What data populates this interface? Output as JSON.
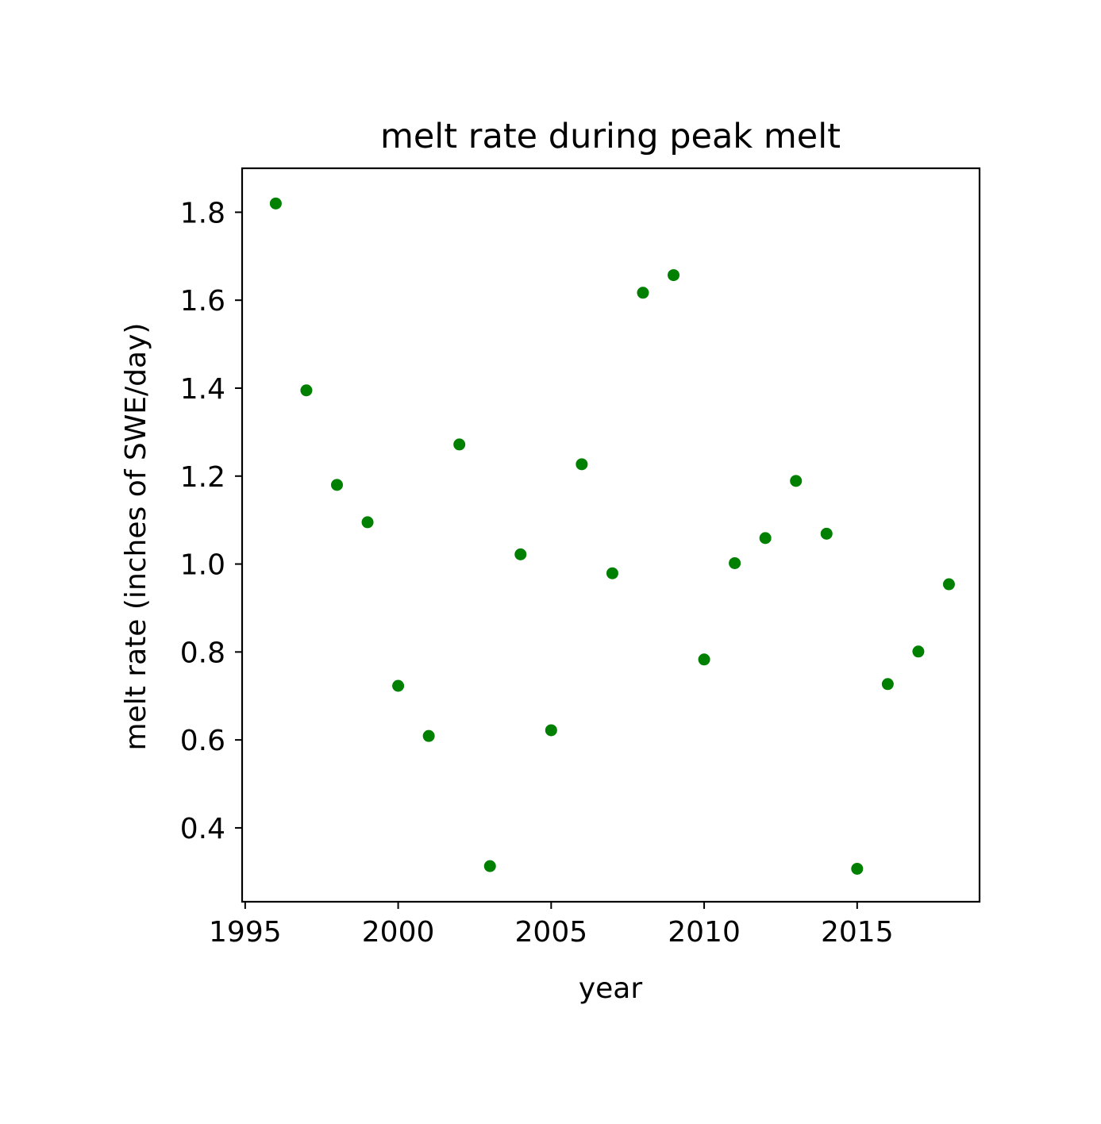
{
  "chart_data": {
    "type": "scatter",
    "title": "melt rate during peak melt",
    "xlabel": "year",
    "ylabel": "melt rate (inches of SWE/day)",
    "xlim": [
      1994.9,
      2019.0
    ],
    "ylim": [
      0.232,
      1.9
    ],
    "xticks": [
      1995,
      2000,
      2005,
      2010,
      2015
    ],
    "yticks": [
      0.4,
      0.6,
      0.8,
      1.0,
      1.2,
      1.4,
      1.6,
      1.8
    ],
    "xtick_labels": [
      "1995",
      "2000",
      "2005",
      "2010",
      "2015"
    ],
    "ytick_labels": [
      "0.4",
      "0.6",
      "0.8",
      "1.0",
      "1.2",
      "1.4",
      "1.6",
      "1.8"
    ],
    "grid": false,
    "marker_color": "#008000",
    "x": [
      1996,
      1997,
      1998,
      1999,
      2000,
      2001,
      2002,
      2003,
      2004,
      2005,
      2006,
      2007,
      2008,
      2009,
      2010,
      2011,
      2012,
      2013,
      2014,
      2015,
      2016,
      2017,
      2018
    ],
    "y": [
      1.82,
      1.395,
      1.18,
      1.095,
      0.723,
      0.609,
      1.272,
      0.313,
      1.022,
      0.622,
      1.227,
      0.979,
      1.617,
      1.657,
      0.783,
      1.002,
      1.059,
      1.189,
      1.069,
      0.307,
      0.727,
      0.801,
      0.954
    ]
  }
}
